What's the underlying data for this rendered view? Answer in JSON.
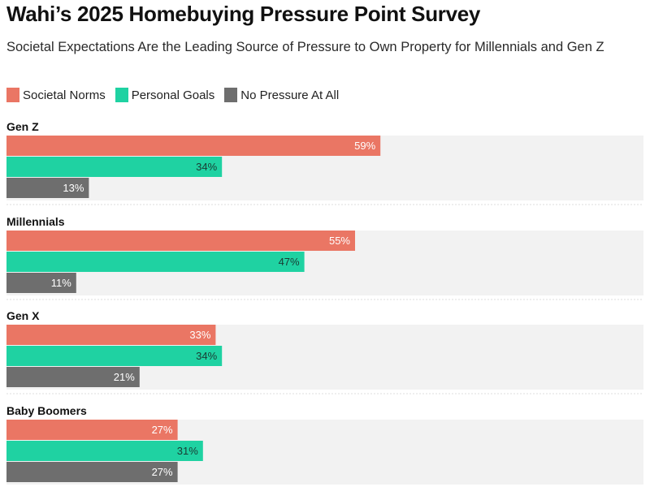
{
  "title": "Wahi’s 2025 Homebuying Pressure Point Survey",
  "subtitle": "Societal Expectations Are the Leading Source of Pressure to Own Property for Millennials and Gen Z",
  "legend": [
    {
      "label": "Societal Norms",
      "color": "#EA7664"
    },
    {
      "label": "Personal Goals",
      "color": "#1FD2A2"
    },
    {
      "label": "No Pressure At All",
      "color": "#6E6E6E"
    }
  ],
  "chart_data": {
    "type": "bar",
    "orientation": "horizontal",
    "grouped": true,
    "categories": [
      "Gen Z",
      "Millennials",
      "Gen X",
      "Baby Boomers"
    ],
    "series": [
      {
        "name": "Societal Norms",
        "color": "#EA7664",
        "values": [
          59,
          55,
          33,
          27
        ]
      },
      {
        "name": "Personal Goals",
        "color": "#1FD2A2",
        "values": [
          34,
          47,
          34,
          31
        ]
      },
      {
        "name": "No Pressure At All",
        "color": "#6E6E6E",
        "values": [
          13,
          11,
          21,
          27
        ]
      }
    ],
    "value_suffix": "%",
    "xlim": [
      0,
      100
    ],
    "background_color": "#F2F2F2",
    "grid": false,
    "legend_position": "top-left"
  }
}
